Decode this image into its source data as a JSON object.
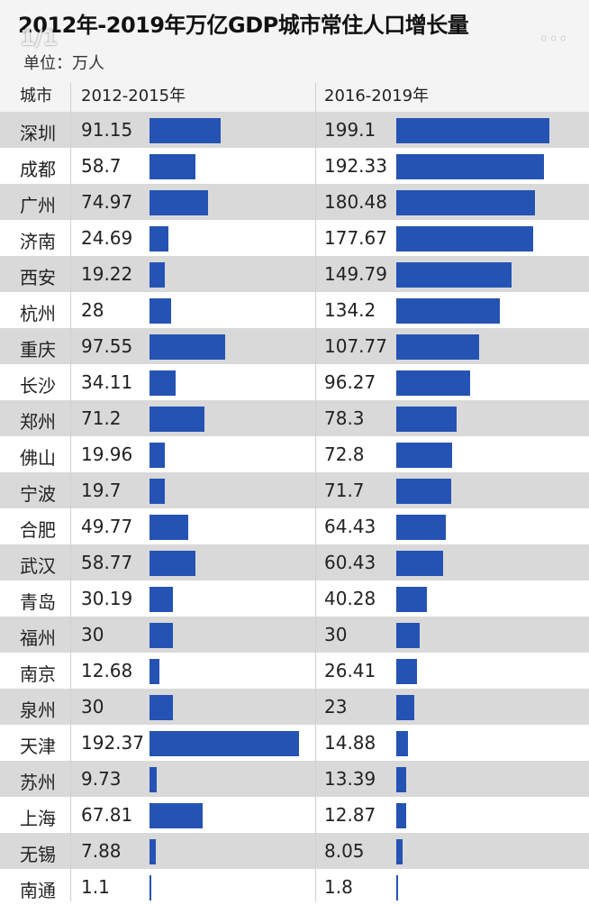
{
  "title": "2012年-2019年万亿GDP城市常住人口增长量",
  "page_indicator": "1/1",
  "more_icon": "...",
  "unit_label": "单位：万人",
  "chart_data": {
    "type": "table",
    "title": "2012年-2019年万亿GDP城市常住人口增长量",
    "unit": "单位：万人",
    "columns": [
      "城市",
      "2012-2015年",
      "2016-2019年"
    ],
    "bar_color": "#2553b4",
    "rows": [
      {
        "city": "深圳",
        "v1": "91.15",
        "v2": "199.1"
      },
      {
        "city": "成都",
        "v1": "58.7",
        "v2": "192.33"
      },
      {
        "city": "广州",
        "v1": "74.97",
        "v2": "180.48"
      },
      {
        "city": "济南",
        "v1": "24.69",
        "v2": "177.67"
      },
      {
        "city": "西安",
        "v1": "19.22",
        "v2": "149.79"
      },
      {
        "city": "杭州",
        "v1": "28",
        "v2": "134.2"
      },
      {
        "city": "重庆",
        "v1": "97.55",
        "v2": "107.77"
      },
      {
        "city": "长沙",
        "v1": "34.11",
        "v2": "96.27"
      },
      {
        "city": "郑州",
        "v1": "71.2",
        "v2": "78.3"
      },
      {
        "city": "佛山",
        "v1": "19.96",
        "v2": "72.8"
      },
      {
        "city": "宁波",
        "v1": "19.7",
        "v2": "71.7"
      },
      {
        "city": "合肥",
        "v1": "49.77",
        "v2": "64.43"
      },
      {
        "city": "武汉",
        "v1": "58.77",
        "v2": "60.43"
      },
      {
        "city": "青岛",
        "v1": "30.19",
        "v2": "40.28"
      },
      {
        "city": "福州",
        "v1": "30",
        "v2": "30"
      },
      {
        "city": "南京",
        "v1": "12.68",
        "v2": "26.41"
      },
      {
        "city": "泉州",
        "v1": "30",
        "v2": "23"
      },
      {
        "city": "天津",
        "v1": "192.37",
        "v2": "14.88"
      },
      {
        "city": "苏州",
        "v1": "9.73",
        "v2": "13.39"
      },
      {
        "city": "上海",
        "v1": "67.81",
        "v2": "12.87"
      },
      {
        "city": "无锡",
        "v1": "7.88",
        "v2": "8.05"
      },
      {
        "city": "南通",
        "v1": "1.1",
        "v2": "1.8"
      }
    ]
  }
}
